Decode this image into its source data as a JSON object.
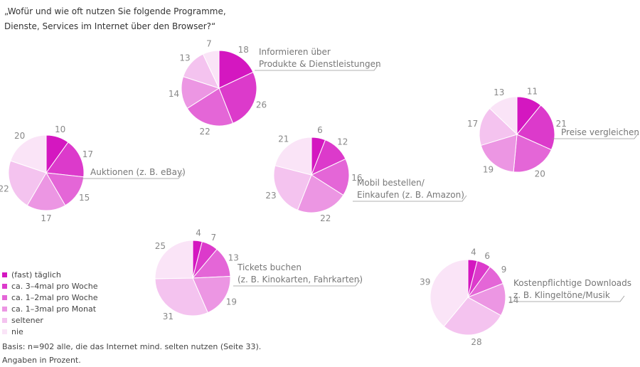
{
  "question": {
    "line1": "„Wofür und wie oft nutzen Sie folgende Programme,",
    "line2": "Dienste, Services im Internet über den Browser?“"
  },
  "legend": [
    {
      "label": "(fast) täglich",
      "color": "#d417c0"
    },
    {
      "label": "ca. 3–4mal pro Woche",
      "color": "#dc3acb"
    },
    {
      "label": "ca. 1–2mal pro Woche",
      "color": "#e466d7"
    },
    {
      "label": "ca. 1–3mal pro Monat",
      "color": "#ec96e3"
    },
    {
      "label": "seltener",
      "color": "#f4c3ef"
    },
    {
      "label": "nie",
      "color": "#fae4f7"
    }
  ],
  "footer": {
    "basis": "Basis: n=902 alle, die das Internet mind. selten nutzen (Seite 33).",
    "unit": "Angaben in Prozent."
  },
  "chart_data": [
    {
      "type": "pie",
      "title": "Informieren über Produkte & Dienstleistungen",
      "title_lines": [
        "Informieren über",
        "Produkte & Dienstleistungen"
      ],
      "categories": [
        "(fast) täglich",
        "ca. 3–4mal pro Woche",
        "ca. 1–2mal pro Woche",
        "ca. 1–3mal pro Monat",
        "seltener",
        "nie"
      ],
      "values": [
        18,
        26,
        22,
        14,
        13,
        7
      ]
    },
    {
      "type": "pie",
      "title": "Preise vergleichen",
      "title_lines": [
        "Preise vergleichen"
      ],
      "categories": [
        "(fast) täglich",
        "ca. 3–4mal pro Woche",
        "ca. 1–2mal pro Woche",
        "ca. 1–3mal pro Monat",
        "seltener",
        "nie"
      ],
      "values": [
        11,
        21,
        20,
        19,
        17,
        13
      ]
    },
    {
      "type": "pie",
      "title": "Auktionen (z. B. eBay)",
      "title_lines": [
        "Auktionen (z. B. eBay)"
      ],
      "categories": [
        "(fast) täglich",
        "ca. 3–4mal pro Woche",
        "ca. 1–2mal pro Woche",
        "ca. 1–3mal pro Monat",
        "seltener",
        "nie"
      ],
      "values": [
        10,
        17,
        15,
        17,
        22,
        20
      ]
    },
    {
      "type": "pie",
      "title": "Mobil bestellen/ Einkaufen (z. B. Amazon)",
      "title_lines": [
        "Mobil bestellen/",
        "Einkaufen (z. B. Amazon)"
      ],
      "categories": [
        "(fast) täglich",
        "ca. 3–4mal pro Woche",
        "ca. 1–2mal pro Woche",
        "ca. 1–3mal pro Monat",
        "seltener",
        "nie"
      ],
      "values": [
        6,
        12,
        16,
        22,
        23,
        21
      ]
    },
    {
      "type": "pie",
      "title": "Tickets buchen (z. B. Kinokarten, Fahrkarten)",
      "title_lines": [
        "Tickets buchen",
        "(z. B. Kinokarten, Fahrkarten)"
      ],
      "categories": [
        "(fast) täglich",
        "ca. 3–4mal pro Woche",
        "ca. 1–2mal pro Woche",
        "ca. 1–3mal pro Monat",
        "seltener",
        "nie"
      ],
      "values": [
        4,
        7,
        13,
        19,
        31,
        25
      ]
    },
    {
      "type": "pie",
      "title": "Kostenpflichtige Downloads z. B. Klingeltöne/Musik",
      "title_lines": [
        "Kostenpflichtige Downloads",
        "z. B. Klingeltöne/Musik"
      ],
      "categories": [
        "(fast) täglich",
        "ca. 3–4mal pro Woche",
        "ca. 1–2mal pro Woche",
        "ca. 1–3mal pro Monat",
        "seltener",
        "nie"
      ],
      "values": [
        4,
        6,
        9,
        14,
        28,
        39
      ]
    }
  ]
}
